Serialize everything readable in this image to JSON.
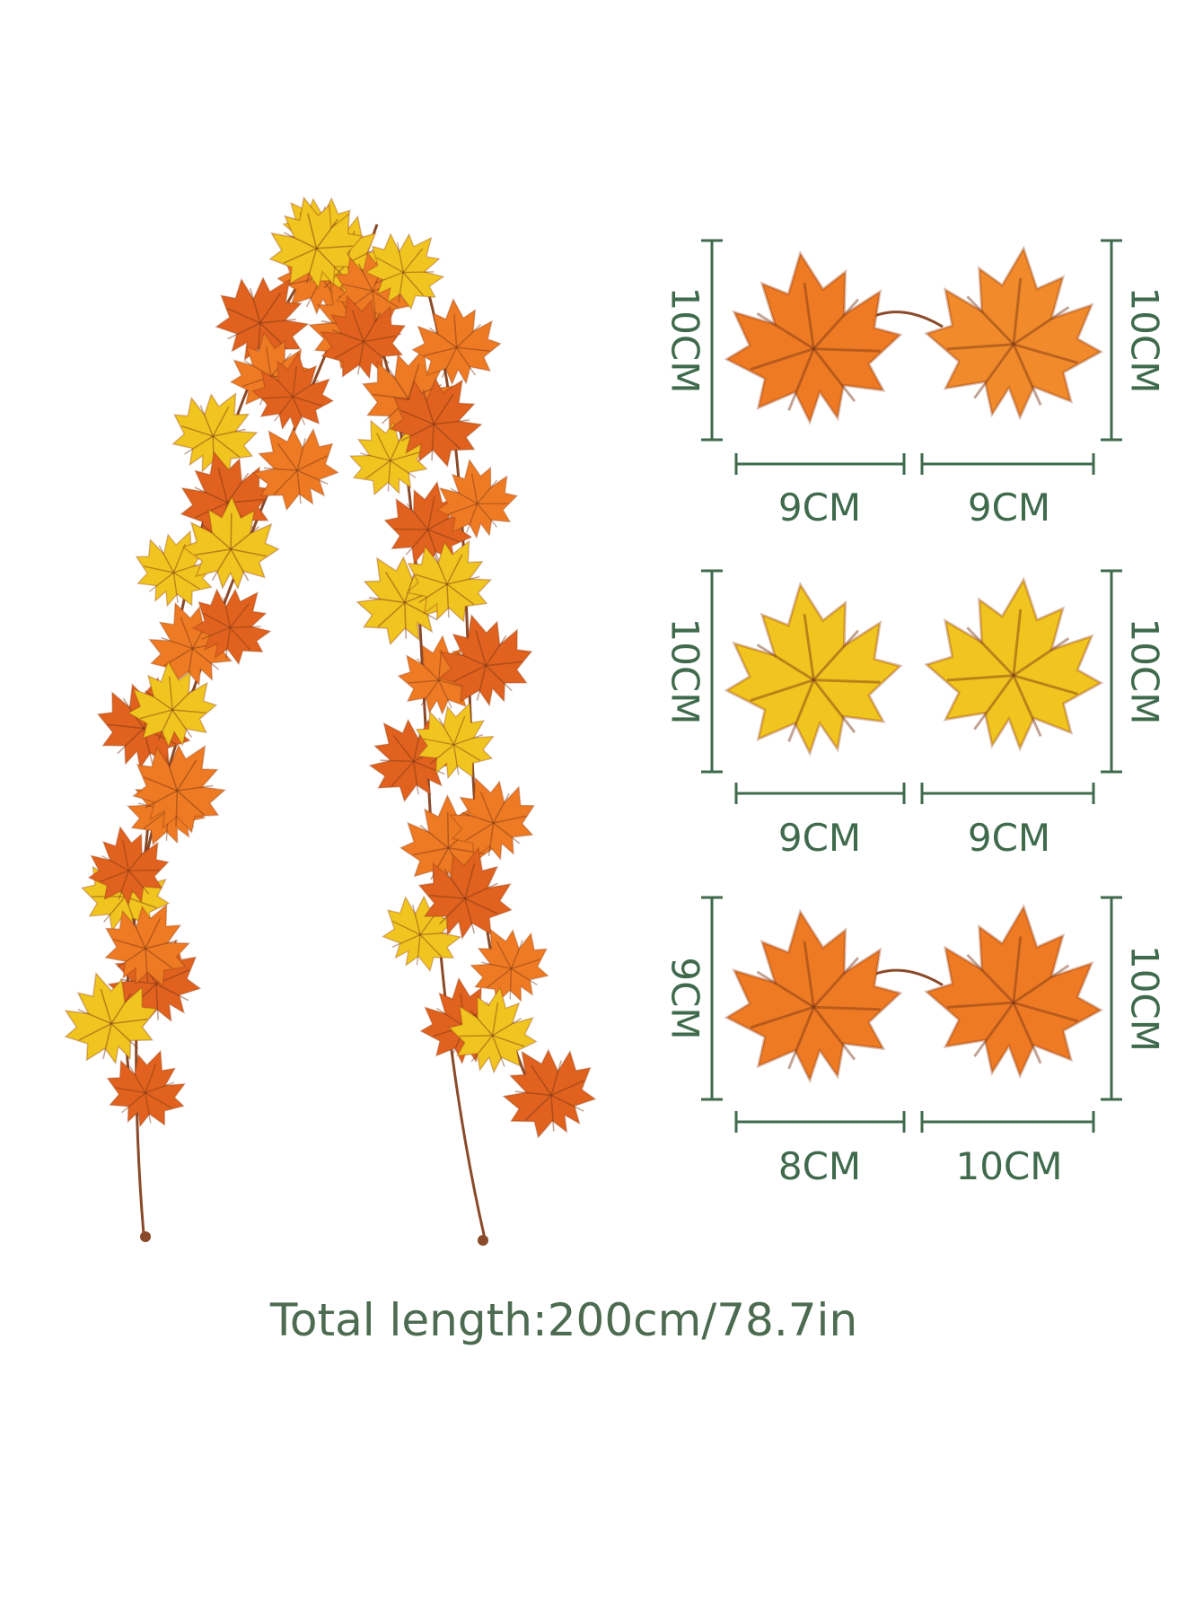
{
  "colors": {
    "dimension_line": "#3f6a4c",
    "text": "#4c6b50",
    "leaf_yellow": "#f1c51f",
    "leaf_orange": "#ee7b23",
    "leaf_red_orange": "#e0621e",
    "stem": "#8a4a2a"
  },
  "garland": {
    "icon": "maple-leaf-garland"
  },
  "leaf_pairs": [
    {
      "height_left": "10CM",
      "height_right": "10CM",
      "width_left": "9CM",
      "width_right": "9CM",
      "leaf_color": "orange"
    },
    {
      "height_left": "10CM",
      "height_right": "10CM",
      "width_left": "9CM",
      "width_right": "9CM",
      "leaf_color": "yellow"
    },
    {
      "height_left": "9CM",
      "height_right": "10CM",
      "width_left": "8CM",
      "width_right": "10CM",
      "leaf_color": "orange"
    }
  ],
  "total_length": "Total length:200cm/78.7in"
}
